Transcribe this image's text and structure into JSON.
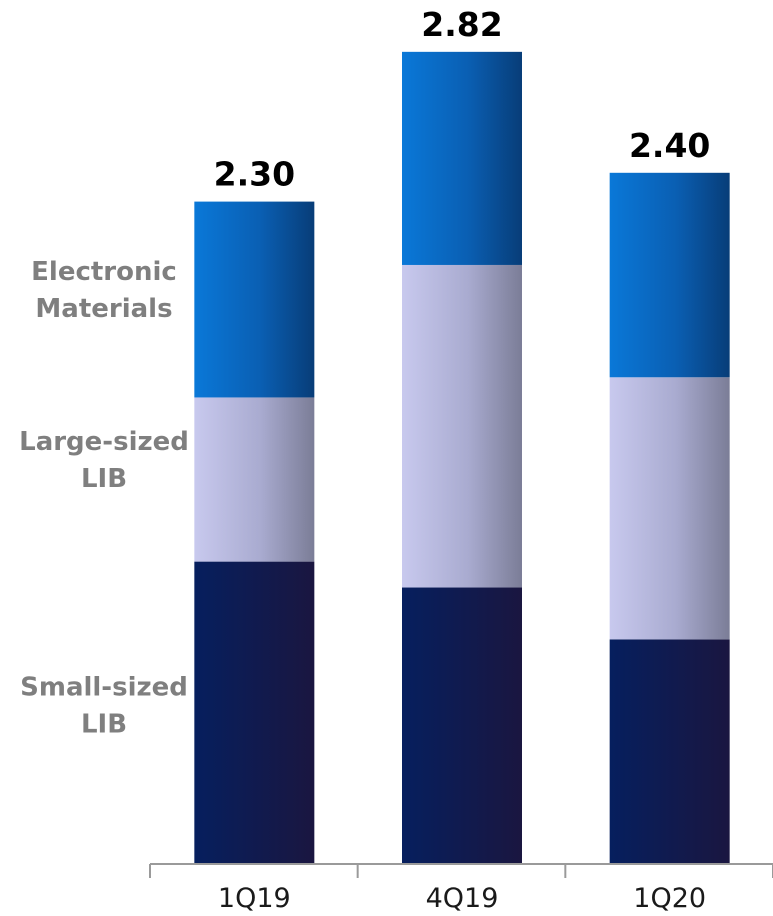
{
  "chart_data": {
    "type": "bar",
    "stacked": true,
    "categories": [
      "1Q19",
      "4Q19",
      "1Q20"
    ],
    "totals": [
      "2.30",
      "2.82",
      "2.40"
    ],
    "series": [
      {
        "name": "Small-sized LIB",
        "label_lines": [
          "Small-sized",
          "LIB"
        ],
        "values": [
          1.05,
          0.96,
          0.78
        ],
        "color": "#0b1d5c"
      },
      {
        "name": "Large-sized LIB",
        "label_lines": [
          "Large-sized",
          "LIB"
        ],
        "values": [
          0.57,
          1.12,
          0.91
        ],
        "color": "#b9bbe0"
      },
      {
        "name": "Electronic Materials",
        "label_lines": [
          "Electronic",
          "Materials"
        ],
        "values": [
          0.68,
          0.74,
          0.71
        ],
        "color": "#0a6fd0"
      }
    ],
    "ylim": [
      0,
      3.0
    ],
    "grid": false,
    "legend": "left"
  }
}
